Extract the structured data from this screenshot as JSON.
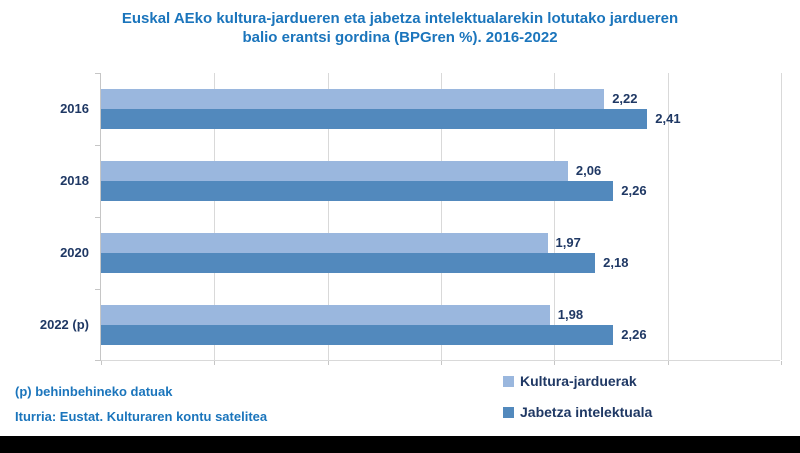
{
  "title": {
    "line1": "Euskal AEko kultura-jardueren eta jabetza intelektualarekin lotutako jardueren",
    "line2": "balio erantsi gordina (BPGren %). 2016-2022"
  },
  "colors": {
    "title_blue": "#1B75BC",
    "navy_text": "#1F3864",
    "light_series": "#9AB7DE",
    "dark_series": "#5289BD",
    "gridline": "#D9D9D9",
    "axis": "#C6C6C6",
    "bottom_bar": "#000000"
  },
  "chart_data": {
    "type": "bar",
    "orientation": "horizontal",
    "title": "Euskal AEko kultura-jardueren eta jabetza intelektualarekin lotutako jardueren balio erantsi gordina (BPGren %). 2016-2022",
    "categories": [
      "2016",
      "2018",
      "2020",
      "2022 (p)"
    ],
    "series": [
      {
        "name": "Kultura-jarduerak",
        "color_key": "light_series",
        "values": [
          2.22,
          2.06,
          1.97,
          1.98
        ],
        "labels": [
          "2,22",
          "2,06",
          "1,97",
          "1,98"
        ]
      },
      {
        "name": "Jabetza intelektuala",
        "color_key": "dark_series",
        "values": [
          2.41,
          2.26,
          2.18,
          2.26
        ],
        "labels": [
          "2,41",
          "2,26",
          "2,18",
          "2,26"
        ]
      }
    ],
    "xlim": [
      0,
      3
    ],
    "gridline_step": 0.5,
    "grid": true,
    "value_labels": true,
    "legend_position": "bottom-right"
  },
  "legend": {
    "items": [
      {
        "label": "Kultura-jarduerak",
        "color_key": "light_series"
      },
      {
        "label": "Jabetza intelektuala",
        "color_key": "dark_series"
      }
    ]
  },
  "footer": {
    "note": "(p) behinbehineko datuak",
    "source": "Iturria: Eustat. Kulturaren kontu satelitea"
  }
}
